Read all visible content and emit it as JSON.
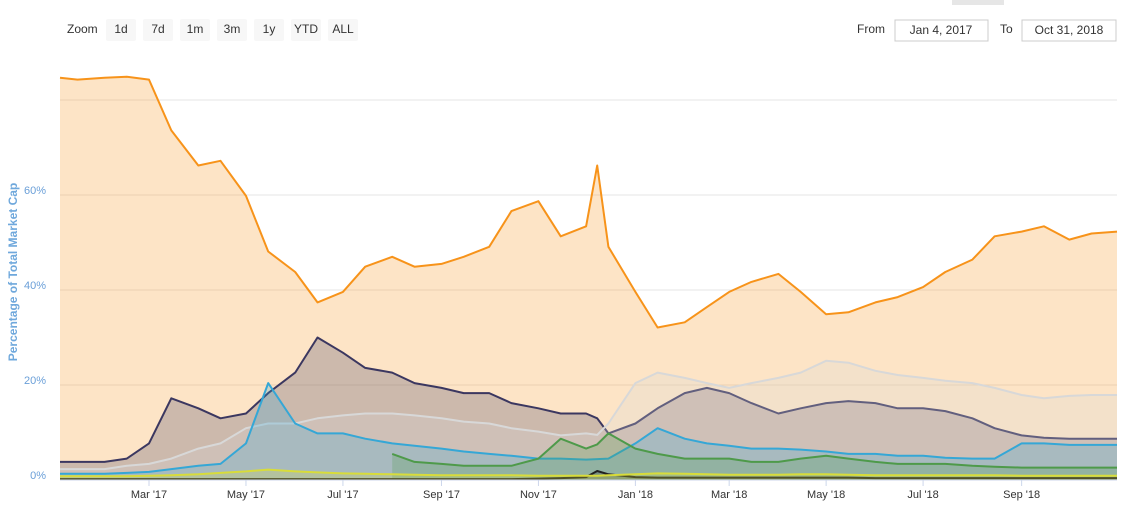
{
  "range_selector": {
    "zoom_label": "Zoom",
    "buttons": [
      "1d",
      "7d",
      "1m",
      "3m",
      "1y",
      "YTD",
      "ALL"
    ],
    "from_label": "From",
    "from": "Jan 4, 2017",
    "to_label": "To",
    "to": "Oct 31, 2018"
  },
  "chart_data": {
    "type": "area",
    "y_axis_label": "Percentage of Total Market Cap",
    "x": [
      "2017-01-04",
      "2017-01-15",
      "2017-02-01",
      "2017-02-15",
      "2017-03-01",
      "2017-03-15",
      "2017-04-01",
      "2017-04-15",
      "2017-05-01",
      "2017-05-15",
      "2017-06-01",
      "2017-06-15",
      "2017-07-01",
      "2017-07-15",
      "2017-08-01",
      "2017-08-15",
      "2017-09-01",
      "2017-09-15",
      "2017-10-01",
      "2017-10-15",
      "2017-11-01",
      "2017-11-15",
      "2017-12-01",
      "2017-12-08",
      "2017-12-15",
      "2018-01-01",
      "2018-01-15",
      "2018-02-01",
      "2018-02-15",
      "2018-03-01",
      "2018-03-15",
      "2018-04-01",
      "2018-04-15",
      "2018-05-01",
      "2018-05-15",
      "2018-06-01",
      "2018-06-15",
      "2018-07-01",
      "2018-07-15",
      "2018-08-01",
      "2018-08-15",
      "2018-09-01",
      "2018-09-15",
      "2018-10-01",
      "2018-10-15",
      "2018-10-31"
    ],
    "xlim": [
      "2017-01-04",
      "2018-10-31"
    ],
    "xticks": [
      {
        "value": "2017-03-01",
        "label": "Mar '17"
      },
      {
        "value": "2017-05-01",
        "label": "May '17"
      },
      {
        "value": "2017-07-01",
        "label": "Jul '17"
      },
      {
        "value": "2017-09-01",
        "label": "Sep '17"
      },
      {
        "value": "2017-11-01",
        "label": "Nov '17"
      },
      {
        "value": "2018-01-01",
        "label": "Jan '18"
      },
      {
        "value": "2018-03-01",
        "label": "Mar '18"
      },
      {
        "value": "2018-05-01",
        "label": "May '18"
      },
      {
        "value": "2018-07-01",
        "label": "Jul '18"
      },
      {
        "value": "2018-09-01",
        "label": "Sep '18"
      }
    ],
    "ylim": [
      0,
      88
    ],
    "yticks": [
      {
        "value": 0,
        "label": "0%"
      },
      {
        "value": 20,
        "label": "20%"
      },
      {
        "value": 40,
        "label": "40%"
      },
      {
        "value": 60,
        "label": "60%"
      },
      {
        "value": 80,
        "label": null
      }
    ],
    "grid": true,
    "fill_opacity": 0.25,
    "series": [
      {
        "color": "#f7931a",
        "values": [
          84.7,
          84.3,
          84.7,
          84.9,
          84.3,
          73.6,
          66.2,
          67.2,
          59.8,
          48.1,
          43.8,
          37.4,
          39.6,
          44.9,
          47,
          44.9,
          45.5,
          47,
          49.1,
          56.6,
          58.7,
          51.3,
          53.4,
          66.2,
          49.1,
          39.6,
          32.1,
          33.2,
          36.4,
          39.6,
          41.7,
          43.4,
          39.6,
          34.9,
          35.3,
          37.4,
          38.5,
          40.6,
          43.8,
          46.4,
          51.3,
          52.3,
          53.4,
          50.6,
          51.9,
          52.3
        ]
      },
      {
        "color": "#3b3760",
        "values": [
          3.8,
          3.8,
          3.8,
          4.5,
          7.7,
          17.2,
          15.1,
          13,
          14,
          18.3,
          22.6,
          30,
          26.8,
          23.6,
          22.6,
          20.4,
          19.4,
          18.3,
          18.3,
          16.2,
          15.1,
          14,
          14,
          13,
          9.8,
          11.9,
          15.1,
          18.3,
          19.4,
          18.3,
          16.2,
          14,
          15.1,
          16.2,
          16.6,
          16.2,
          15.1,
          15.1,
          14.5,
          13,
          10.9,
          9.4,
          8.9,
          8.7,
          8.7,
          8.7
        ]
      },
      {
        "color": "#d8d8d8",
        "values": [
          2.3,
          2.3,
          2.3,
          3,
          3.4,
          4.5,
          6.6,
          7.7,
          10.9,
          11.9,
          11.9,
          13,
          13.6,
          14,
          14,
          13.6,
          13,
          12.3,
          11.9,
          10.9,
          10.2,
          9.4,
          9.8,
          9.5,
          11.9,
          20.4,
          22.6,
          21.5,
          20.4,
          19.4,
          20.4,
          21.5,
          22.6,
          25.1,
          24.7,
          23,
          22.1,
          21.5,
          20.9,
          20.4,
          19.4,
          17.9,
          17.2,
          17.7,
          17.9,
          17.9
        ]
      },
      {
        "color": "#35a7d6",
        "values": [
          1.3,
          1.3,
          1.3,
          1.5,
          1.7,
          2.3,
          3,
          3.4,
          7.7,
          20.4,
          11.9,
          9.8,
          9.8,
          8.7,
          7.7,
          7.2,
          6.6,
          6,
          5.5,
          5.1,
          4.5,
          4.5,
          4.3,
          4.4,
          4.5,
          7.7,
          10.9,
          8.7,
          7.7,
          7.2,
          6.6,
          6.6,
          6.4,
          6,
          5.5,
          5.5,
          5.1,
          5.1,
          4.7,
          4.5,
          4.5,
          7.7,
          7.7,
          7.4,
          7.4,
          7.4
        ]
      },
      {
        "color": "#4e9a4a",
        "values": [
          null,
          null,
          null,
          null,
          null,
          null,
          null,
          null,
          null,
          null,
          null,
          null,
          null,
          null,
          5.5,
          3.8,
          3.4,
          3,
          3,
          3,
          4.5,
          8.7,
          6.6,
          7.5,
          9.8,
          6.6,
          5.5,
          4.5,
          4.5,
          4.5,
          3.8,
          3.8,
          4.5,
          5.1,
          4.5,
          3.8,
          3.4,
          3.4,
          3.4,
          3,
          2.8,
          2.6,
          2.6,
          2.6,
          2.6,
          2.6
        ]
      },
      {
        "color": "#222222",
        "values": [
          0.2,
          0.2,
          0.2,
          0.2,
          0.2,
          0.2,
          0.2,
          0.2,
          0.2,
          0.2,
          0.2,
          0.2,
          0.2,
          0.2,
          0.2,
          0.2,
          0.2,
          0.2,
          0.2,
          0.2,
          0.3,
          0.4,
          0.6,
          1.9,
          1.2,
          0.6,
          0.5,
          0.5,
          0.5,
          0.5,
          0.5,
          0.5,
          0.5,
          0.5,
          0.5,
          0.4,
          0.4,
          0.4,
          0.4,
          0.4,
          0.4,
          0.4,
          0.4,
          0.4,
          0.4,
          0.4
        ]
      },
      {
        "color": "#d8dc3a",
        "values": [
          0.8,
          0.8,
          0.8,
          0.8,
          0.9,
          1,
          1.2,
          1.5,
          1.8,
          2.2,
          1.8,
          1.6,
          1.4,
          1.3,
          1.2,
          1.1,
          1,
          1,
          1,
          1,
          0.9,
          0.9,
          0.9,
          0.9,
          1,
          1.2,
          1.4,
          1.3,
          1.2,
          1.1,
          1.1,
          1.1,
          1.2,
          1.2,
          1.1,
          1,
          1,
          1,
          1,
          1,
          1,
          0.9,
          0.9,
          0.9,
          0.9,
          0.9
        ]
      }
    ]
  }
}
